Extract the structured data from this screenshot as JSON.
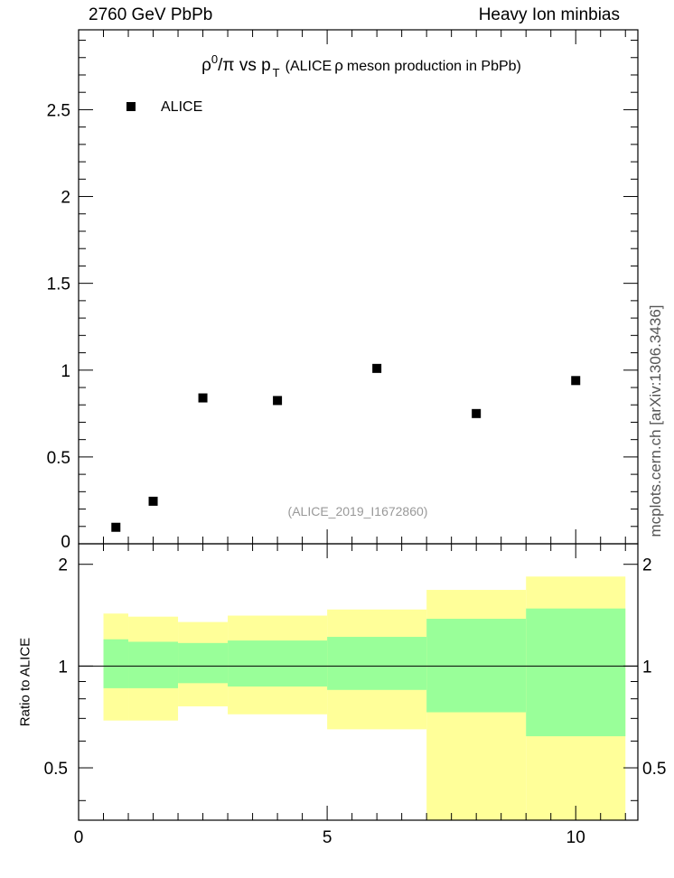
{
  "header": {
    "left": "2760 GeV PbPb",
    "right": "Heavy Ion minbias"
  },
  "side_label": "mcplots.cern.ch [arXiv:1306.3436]",
  "ratio_ylabel": "Ratio to ALICE",
  "watermark": "(ALICE_2019_I1672860)",
  "colors": {
    "band_outer": "#ffff99",
    "band_inner": "#99ff99",
    "marker": "#000000"
  },
  "chart_data": [
    {
      "type": "scatter",
      "title_parts": {
        "rho": "ρ",
        "sup0": "0",
        "slash_pi": "/π vs p",
        "subT": "T",
        "rest_a": "(ALICE",
        "rho2": "ρ",
        "rest_b": "meson production in PbPb)"
      },
      "xlim": [
        0,
        11.25
      ],
      "ylim": [
        0,
        2.96
      ],
      "yticks": [
        0,
        0.5,
        1,
        1.5,
        2,
        2.5
      ],
      "ytick_labels": [
        "0",
        "0.5",
        "1",
        "1.5",
        "2",
        "2.5"
      ],
      "legend": {
        "entry": "ALICE",
        "placement": "top-left"
      },
      "series": [
        {
          "name": "ALICE",
          "x": [
            0.75,
            1.5,
            2.5,
            4.0,
            6.0,
            8.0,
            10.0
          ],
          "y": [
            0.095,
            0.245,
            0.84,
            0.825,
            1.01,
            0.75,
            0.94
          ]
        }
      ]
    },
    {
      "type": "area",
      "xlim": [
        0,
        11.25
      ],
      "ylim": [
        0.35,
        2.3
      ],
      "log_y": true,
      "xticks": [
        0,
        5,
        10
      ],
      "xtick_labels": [
        "0",
        "5",
        "10"
      ],
      "yticks": [
        0.5,
        1,
        2
      ],
      "ytick_labels": [
        "0.5",
        "1",
        "2"
      ],
      "reference_line": 1,
      "bins": [
        {
          "x0": 0.5,
          "x1": 1.0,
          "inner": [
            0.86,
            1.2
          ],
          "outer": [
            0.69,
            1.43
          ]
        },
        {
          "x0": 1.0,
          "x1": 2.0,
          "inner": [
            0.86,
            1.18
          ],
          "outer": [
            0.69,
            1.4
          ]
        },
        {
          "x0": 2.0,
          "x1": 3.0,
          "inner": [
            0.89,
            1.17
          ],
          "outer": [
            0.76,
            1.35
          ]
        },
        {
          "x0": 3.0,
          "x1": 5.0,
          "inner": [
            0.87,
            1.19
          ],
          "outer": [
            0.72,
            1.41
          ]
        },
        {
          "x0": 5.0,
          "x1": 7.0,
          "inner": [
            0.85,
            1.22
          ],
          "outer": [
            0.65,
            1.47
          ]
        },
        {
          "x0": 7.0,
          "x1": 9.0,
          "inner": [
            0.73,
            1.38
          ],
          "outer": [
            0.35,
            1.68
          ]
        },
        {
          "x0": 9.0,
          "x1": 11.0,
          "inner": [
            0.62,
            1.48
          ],
          "outer": [
            0.35,
            1.84
          ]
        }
      ]
    }
  ]
}
